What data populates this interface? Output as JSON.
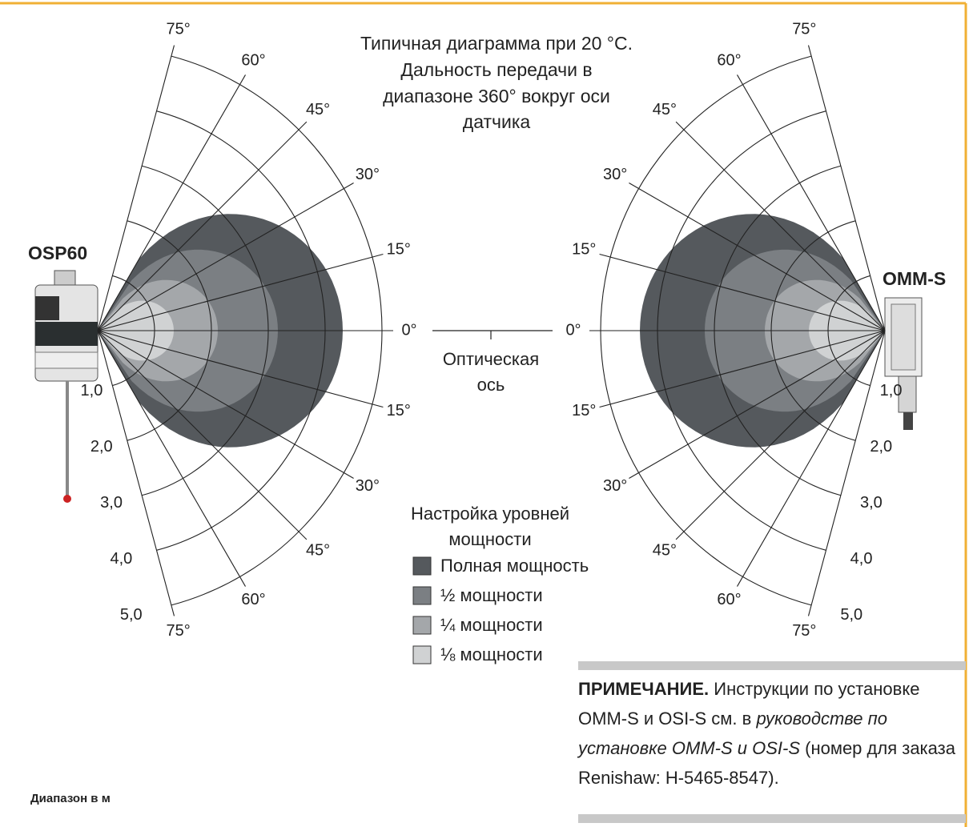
{
  "title_lines": [
    "Типичная диаграмма при 20 °C.",
    "Дальность передачи в",
    "диапазоне 360° вокруг оси",
    "датчика"
  ],
  "left": {
    "device": "OSP60",
    "upper_angles": [
      {
        "value": 15,
        "label": "15°"
      },
      {
        "value": 30,
        "label": "30°"
      },
      {
        "value": 45,
        "label": "45°"
      },
      {
        "value": 60,
        "label": "60°"
      },
      {
        "value": 75,
        "label": "75°"
      }
    ],
    "lower_angles": [
      {
        "value": 15,
        "label": "15°"
      },
      {
        "value": 30,
        "label": "30°"
      },
      {
        "value": 45,
        "label": "45°"
      },
      {
        "value": 60,
        "label": "60°"
      },
      {
        "value": 75,
        "label": "75°"
      }
    ],
    "axis_angle": {
      "value": 0,
      "label": "0°"
    },
    "ranges": [
      {
        "value": 1,
        "label": "1,0"
      },
      {
        "value": 2,
        "label": "2,0"
      },
      {
        "value": 3,
        "label": "3,0"
      },
      {
        "value": 4,
        "label": "4,0"
      },
      {
        "value": 5,
        "label": "5,0"
      }
    ]
  },
  "right": {
    "device": "OMM-S",
    "upper_angles": [
      {
        "value": 15,
        "label": "15°"
      },
      {
        "value": 30,
        "label": "30°"
      },
      {
        "value": 45,
        "label": "45°"
      },
      {
        "value": 60,
        "label": "60°"
      },
      {
        "value": 75,
        "label": "75°"
      }
    ],
    "lower_angles": [
      {
        "value": 15,
        "label": "15°"
      },
      {
        "value": 30,
        "label": "30°"
      },
      {
        "value": 45,
        "label": "45°"
      },
      {
        "value": 60,
        "label": "60°"
      },
      {
        "value": 75,
        "label": "75°"
      }
    ],
    "axis_angle": {
      "value": 0,
      "label": "0°"
    },
    "ranges": [
      {
        "value": 1,
        "label": "1,0"
      },
      {
        "value": 2,
        "label": "2,0"
      },
      {
        "value": 3,
        "label": "3,0"
      },
      {
        "value": 4,
        "label": "4,0"
      },
      {
        "value": 5,
        "label": "5,0"
      }
    ]
  },
  "optical_axis": [
    "Оптическая",
    "ось"
  ],
  "legend": {
    "title": [
      "Настройка уровней",
      "мощности"
    ],
    "items": [
      {
        "label": "Полная мощность",
        "color": "#55595d"
      },
      {
        "label": "½ мощности",
        "color": "#7b7f83"
      },
      {
        "label": "¼ мощности",
        "color": "#a4a7aa"
      },
      {
        "label": "⅛ мощности",
        "color": "#d0d2d3"
      }
    ]
  },
  "note": {
    "lead": "ПРИМЕЧАНИЕ.",
    "text1": " Инструкции по установке OMM-S и OSI-S см. в ",
    "italic": "руководстве по установке OMM-S и OSI-S",
    "text2": " (номер для заказа Renishaw: H-5465-8547)."
  },
  "range_unit": "Диапазон в м"
}
